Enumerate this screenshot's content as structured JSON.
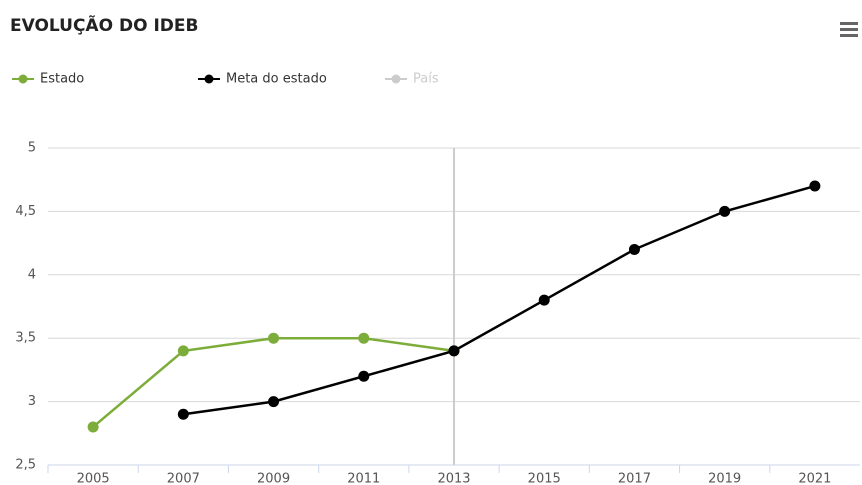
{
  "chart_data": {
    "type": "line",
    "title": "EVOLUÇÃO DO IDEB",
    "categories": [
      "2005",
      "2007",
      "2009",
      "2011",
      "2013",
      "2015",
      "2017",
      "2019",
      "2021"
    ],
    "series": [
      {
        "name": "Estado",
        "color": "#7cad3a",
        "values": [
          2.8,
          3.4,
          3.5,
          3.5,
          3.4,
          null,
          null,
          null,
          null
        ]
      },
      {
        "name": "Meta do estado",
        "color": "#000000",
        "values": [
          null,
          2.9,
          3.0,
          3.2,
          3.4,
          3.8,
          4.2,
          4.5,
          4.7
        ]
      },
      {
        "name": "País",
        "color": "#cccccc",
        "values": [
          null,
          null,
          null,
          null,
          null,
          null,
          null,
          null,
          null
        ],
        "hidden": true
      }
    ],
    "ylim": [
      2.5,
      5
    ],
    "yticks": [
      {
        "value": 2.5,
        "label": "2,5"
      },
      3,
      {
        "value": 3.5,
        "label": "3,5"
      },
      4,
      {
        "value": 4.5,
        "label": "4,5"
      },
      5
    ],
    "grid": true
  }
}
